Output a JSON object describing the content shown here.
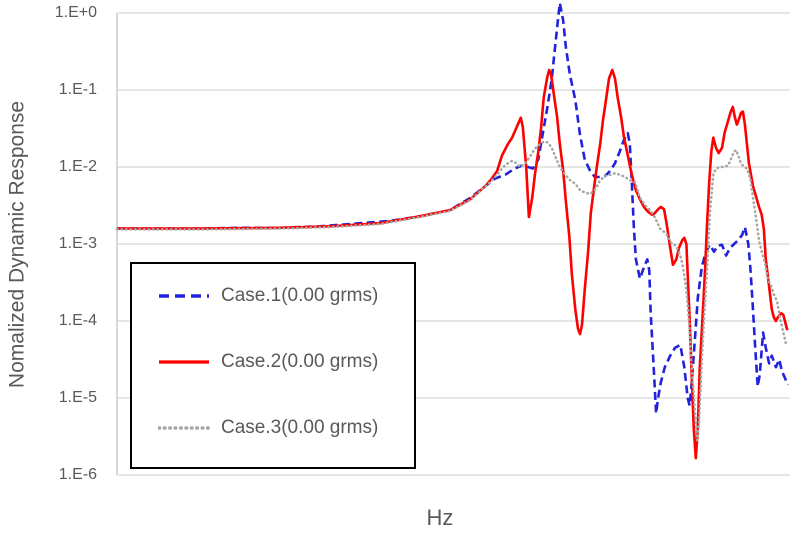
{
  "chart_data": {
    "type": "line",
    "title": "",
    "xlabel": "Hz",
    "ylabel": "Nomalized Dynamic Response",
    "grid": "horizontal-log-decades",
    "legend_position": "inside lower-left, black border",
    "x_axis": {
      "tick_labels": [],
      "note_encoding": "x stored as fraction 0-1 of plot width (no numeric x ticks shown)"
    },
    "y_axis": {
      "scale": "log10",
      "min": 1e-06,
      "max": 1,
      "tick_labels": [
        "1.E+0",
        "1.E-1",
        "1.E-2",
        "1.E-3",
        "1.E-4",
        "1.E-5",
        "1.E-6"
      ]
    },
    "y_encoding": "log10 of normalized response",
    "series": [
      {
        "name": "Case.1(0.00 grms)",
        "color": "#2222dd",
        "style": "dashed",
        "points": [
          [
            0.0,
            -2.8
          ],
          [
            0.064,
            -2.8
          ],
          [
            0.123,
            -2.8
          ],
          [
            0.183,
            -2.79
          ],
          [
            0.242,
            -2.79
          ],
          [
            0.302,
            -2.77
          ],
          [
            0.361,
            -2.73
          ],
          [
            0.406,
            -2.7
          ],
          [
            0.45,
            -2.64
          ],
          [
            0.495,
            -2.56
          ],
          [
            0.525,
            -2.4
          ],
          [
            0.547,
            -2.25
          ],
          [
            0.562,
            -2.15
          ],
          [
            0.577,
            -2.1
          ],
          [
            0.591,
            -2.02
          ],
          [
            0.602,
            -1.98
          ],
          [
            0.611,
            -2.0
          ],
          [
            0.618,
            -2.02
          ],
          [
            0.626,
            -1.9
          ],
          [
            0.633,
            -1.55
          ],
          [
            0.64,
            -1.2
          ],
          [
            0.646,
            -0.85
          ],
          [
            0.652,
            -0.35
          ],
          [
            0.658,
            0.13
          ],
          [
            0.663,
            -0.1
          ],
          [
            0.667,
            -0.45
          ],
          [
            0.673,
            -0.8
          ],
          [
            0.681,
            -1.13
          ],
          [
            0.688,
            -1.58
          ],
          [
            0.695,
            -1.9
          ],
          [
            0.703,
            -2.05
          ],
          [
            0.71,
            -2.13
          ],
          [
            0.718,
            -2.13
          ],
          [
            0.725,
            -2.12
          ],
          [
            0.733,
            -2.05
          ],
          [
            0.74,
            -1.95
          ],
          [
            0.747,
            -1.8
          ],
          [
            0.753,
            -1.65
          ],
          [
            0.759,
            -1.56
          ],
          [
            0.762,
            -1.7
          ],
          [
            0.765,
            -2.2
          ],
          [
            0.768,
            -2.8
          ],
          [
            0.771,
            -3.2
          ],
          [
            0.777,
            -3.45
          ],
          [
            0.783,
            -3.3
          ],
          [
            0.788,
            -3.2
          ],
          [
            0.791,
            -3.35
          ],
          [
            0.793,
            -3.9
          ],
          [
            0.798,
            -4.7
          ],
          [
            0.801,
            -5.2
          ],
          [
            0.804,
            -5.0
          ],
          [
            0.808,
            -4.8
          ],
          [
            0.814,
            -4.6
          ],
          [
            0.822,
            -4.45
          ],
          [
            0.829,
            -4.35
          ],
          [
            0.837,
            -4.31
          ],
          [
            0.843,
            -4.6
          ],
          [
            0.848,
            -5.0
          ],
          [
            0.851,
            -5.1
          ],
          [
            0.854,
            -4.8
          ],
          [
            0.859,
            -4.2
          ],
          [
            0.863,
            -3.7
          ],
          [
            0.869,
            -3.3
          ],
          [
            0.875,
            -3.1
          ],
          [
            0.881,
            -3.01
          ],
          [
            0.887,
            -3.1
          ],
          [
            0.893,
            -3.02
          ],
          [
            0.899,
            -3.01
          ],
          [
            0.905,
            -3.15
          ],
          [
            0.911,
            -3.05
          ],
          [
            0.917,
            -3.0
          ],
          [
            0.923,
            -2.95
          ],
          [
            0.929,
            -2.88
          ],
          [
            0.933,
            -2.78
          ],
          [
            0.938,
            -3.0
          ],
          [
            0.941,
            -3.3
          ],
          [
            0.944,
            -3.7
          ],
          [
            0.948,
            -4.3
          ],
          [
            0.952,
            -4.85
          ],
          [
            0.955,
            -4.7
          ],
          [
            0.96,
            -4.15
          ],
          [
            0.964,
            -4.35
          ],
          [
            0.969,
            -4.55
          ],
          [
            0.973,
            -4.45
          ],
          [
            0.979,
            -4.6
          ],
          [
            0.984,
            -4.5
          ],
          [
            0.988,
            -4.65
          ],
          [
            0.993,
            -4.75
          ],
          [
            0.997,
            -4.83
          ]
        ]
      },
      {
        "name": "Case.2(0.00 grms)",
        "color": "#ff0000",
        "style": "solid",
        "points": [
          [
            0.0,
            -2.8
          ],
          [
            0.123,
            -2.8
          ],
          [
            0.242,
            -2.79
          ],
          [
            0.317,
            -2.77
          ],
          [
            0.391,
            -2.73
          ],
          [
            0.45,
            -2.64
          ],
          [
            0.495,
            -2.56
          ],
          [
            0.525,
            -2.42
          ],
          [
            0.547,
            -2.25
          ],
          [
            0.557,
            -2.15
          ],
          [
            0.565,
            -2.05
          ],
          [
            0.572,
            -1.85
          ],
          [
            0.581,
            -1.7
          ],
          [
            0.587,
            -1.62
          ],
          [
            0.593,
            -1.5
          ],
          [
            0.597,
            -1.42
          ],
          [
            0.6,
            -1.36
          ],
          [
            0.603,
            -1.48
          ],
          [
            0.608,
            -2.0
          ],
          [
            0.612,
            -2.65
          ],
          [
            0.617,
            -2.4
          ],
          [
            0.621,
            -2.1
          ],
          [
            0.626,
            -1.8
          ],
          [
            0.63,
            -1.5
          ],
          [
            0.634,
            -1.1
          ],
          [
            0.639,
            -0.85
          ],
          [
            0.642,
            -0.74
          ],
          [
            0.645,
            -0.8
          ],
          [
            0.649,
            -1.05
          ],
          [
            0.654,
            -1.35
          ],
          [
            0.658,
            -1.7
          ],
          [
            0.663,
            -2.05
          ],
          [
            0.667,
            -2.45
          ],
          [
            0.672,
            -2.9
          ],
          [
            0.676,
            -3.4
          ],
          [
            0.681,
            -3.85
          ],
          [
            0.685,
            -4.1
          ],
          [
            0.688,
            -4.17
          ],
          [
            0.691,
            -4.05
          ],
          [
            0.695,
            -3.6
          ],
          [
            0.7,
            -3.1
          ],
          [
            0.704,
            -2.6
          ],
          [
            0.709,
            -2.25
          ],
          [
            0.713,
            -2.0
          ],
          [
            0.718,
            -1.7
          ],
          [
            0.722,
            -1.4
          ],
          [
            0.727,
            -1.1
          ],
          [
            0.731,
            -0.85
          ],
          [
            0.736,
            -0.74
          ],
          [
            0.74,
            -0.85
          ],
          [
            0.744,
            -1.1
          ],
          [
            0.749,
            -1.35
          ],
          [
            0.753,
            -1.6
          ],
          [
            0.759,
            -1.85
          ],
          [
            0.765,
            -2.1
          ],
          [
            0.771,
            -2.3
          ],
          [
            0.777,
            -2.42
          ],
          [
            0.783,
            -2.52
          ],
          [
            0.789,
            -2.58
          ],
          [
            0.795,
            -2.62
          ],
          [
            0.799,
            -2.6
          ],
          [
            0.804,
            -2.55
          ],
          [
            0.808,
            -2.52
          ],
          [
            0.813,
            -2.55
          ],
          [
            0.817,
            -2.75
          ],
          [
            0.822,
            -3.05
          ],
          [
            0.826,
            -3.27
          ],
          [
            0.831,
            -3.2
          ],
          [
            0.835,
            -3.05
          ],
          [
            0.84,
            -2.95
          ],
          [
            0.843,
            -2.92
          ],
          [
            0.846,
            -3.0
          ],
          [
            0.848,
            -3.4
          ],
          [
            0.851,
            -4.0
          ],
          [
            0.854,
            -4.7
          ],
          [
            0.857,
            -5.4
          ],
          [
            0.86,
            -5.78
          ],
          [
            0.863,
            -5.4
          ],
          [
            0.866,
            -4.6
          ],
          [
            0.871,
            -3.8
          ],
          [
            0.874,
            -3.3
          ],
          [
            0.877,
            -2.7
          ],
          [
            0.88,
            -2.2
          ],
          [
            0.883,
            -1.8
          ],
          [
            0.886,
            -1.62
          ],
          [
            0.89,
            -1.75
          ],
          [
            0.894,
            -1.82
          ],
          [
            0.899,
            -1.75
          ],
          [
            0.903,
            -1.55
          ],
          [
            0.908,
            -1.4
          ],
          [
            0.912,
            -1.28
          ],
          [
            0.915,
            -1.22
          ],
          [
            0.918,
            -1.35
          ],
          [
            0.921,
            -1.45
          ],
          [
            0.924,
            -1.38
          ],
          [
            0.927,
            -1.3
          ],
          [
            0.93,
            -1.28
          ],
          [
            0.933,
            -1.45
          ],
          [
            0.936,
            -1.7
          ],
          [
            0.939,
            -1.95
          ],
          [
            0.942,
            -2.1
          ],
          [
            0.945,
            -2.25
          ],
          [
            0.95,
            -2.4
          ],
          [
            0.954,
            -2.52
          ],
          [
            0.958,
            -2.62
          ],
          [
            0.961,
            -2.8
          ],
          [
            0.964,
            -3.2
          ],
          [
            0.969,
            -3.55
          ],
          [
            0.973,
            -3.85
          ],
          [
            0.976,
            -3.95
          ],
          [
            0.979,
            -4.0
          ],
          [
            0.982,
            -3.95
          ],
          [
            0.987,
            -3.9
          ],
          [
            0.99,
            -3.92
          ],
          [
            0.993,
            -4.02
          ],
          [
            0.996,
            -4.12
          ]
        ]
      },
      {
        "name": "Case.3(0.00 grms)",
        "color": "#a6a6a6",
        "style": "dotted",
        "points": [
          [
            0.0,
            -2.81
          ],
          [
            0.123,
            -2.81
          ],
          [
            0.242,
            -2.8
          ],
          [
            0.317,
            -2.78
          ],
          [
            0.391,
            -2.74
          ],
          [
            0.45,
            -2.65
          ],
          [
            0.495,
            -2.57
          ],
          [
            0.525,
            -2.43
          ],
          [
            0.539,
            -2.32
          ],
          [
            0.554,
            -2.2
          ],
          [
            0.565,
            -2.1
          ],
          [
            0.574,
            -2.0
          ],
          [
            0.581,
            -1.95
          ],
          [
            0.587,
            -1.92
          ],
          [
            0.593,
            -1.95
          ],
          [
            0.599,
            -2.0
          ],
          [
            0.606,
            -1.96
          ],
          [
            0.614,
            -1.86
          ],
          [
            0.621,
            -1.76
          ],
          [
            0.629,
            -1.7
          ],
          [
            0.634,
            -1.67
          ],
          [
            0.64,
            -1.68
          ],
          [
            0.646,
            -1.75
          ],
          [
            0.652,
            -1.88
          ],
          [
            0.658,
            -2.0
          ],
          [
            0.666,
            -2.1
          ],
          [
            0.673,
            -2.17
          ],
          [
            0.681,
            -2.22
          ],
          [
            0.688,
            -2.3
          ],
          [
            0.695,
            -2.33
          ],
          [
            0.703,
            -2.35
          ],
          [
            0.71,
            -2.3
          ],
          [
            0.718,
            -2.17
          ],
          [
            0.725,
            -2.12
          ],
          [
            0.733,
            -2.1
          ],
          [
            0.74,
            -2.08
          ],
          [
            0.747,
            -2.1
          ],
          [
            0.755,
            -2.13
          ],
          [
            0.762,
            -2.17
          ],
          [
            0.77,
            -2.2
          ],
          [
            0.777,
            -2.4
          ],
          [
            0.785,
            -2.5
          ],
          [
            0.792,
            -2.56
          ],
          [
            0.799,
            -2.65
          ],
          [
            0.807,
            -2.8
          ],
          [
            0.814,
            -2.85
          ],
          [
            0.819,
            -2.9
          ],
          [
            0.823,
            -2.98
          ],
          [
            0.828,
            -3.0
          ],
          [
            0.832,
            -3.05
          ],
          [
            0.837,
            -3.15
          ],
          [
            0.841,
            -3.3
          ],
          [
            0.846,
            -3.6
          ],
          [
            0.85,
            -4.0
          ],
          [
            0.854,
            -4.6
          ],
          [
            0.859,
            -5.2
          ],
          [
            0.862,
            -5.55
          ],
          [
            0.865,
            -5.3
          ],
          [
            0.868,
            -4.7
          ],
          [
            0.872,
            -4.0
          ],
          [
            0.877,
            -3.3
          ],
          [
            0.881,
            -2.6
          ],
          [
            0.886,
            -2.1
          ],
          [
            0.89,
            -2.02
          ],
          [
            0.896,
            -2.0
          ],
          [
            0.902,
            -2.0
          ],
          [
            0.908,
            -1.98
          ],
          [
            0.912,
            -1.9
          ],
          [
            0.917,
            -1.8
          ],
          [
            0.92,
            -1.78
          ],
          [
            0.923,
            -1.85
          ],
          [
            0.927,
            -1.95
          ],
          [
            0.932,
            -2.0
          ],
          [
            0.936,
            -2.02
          ],
          [
            0.941,
            -2.15
          ],
          [
            0.945,
            -2.4
          ],
          [
            0.95,
            -2.7
          ],
          [
            0.954,
            -2.95
          ],
          [
            0.958,
            -3.1
          ],
          [
            0.963,
            -3.25
          ],
          [
            0.967,
            -3.45
          ],
          [
            0.972,
            -3.55
          ],
          [
            0.976,
            -3.65
          ],
          [
            0.981,
            -3.75
          ],
          [
            0.985,
            -3.95
          ],
          [
            0.99,
            -4.15
          ],
          [
            0.994,
            -4.3
          ]
        ]
      }
    ]
  },
  "colors": {
    "grid": "#d6d6d6",
    "axis": "#c3c3c3",
    "text": "#595959",
    "legend_border": "#000000",
    "background": "#ffffff"
  }
}
